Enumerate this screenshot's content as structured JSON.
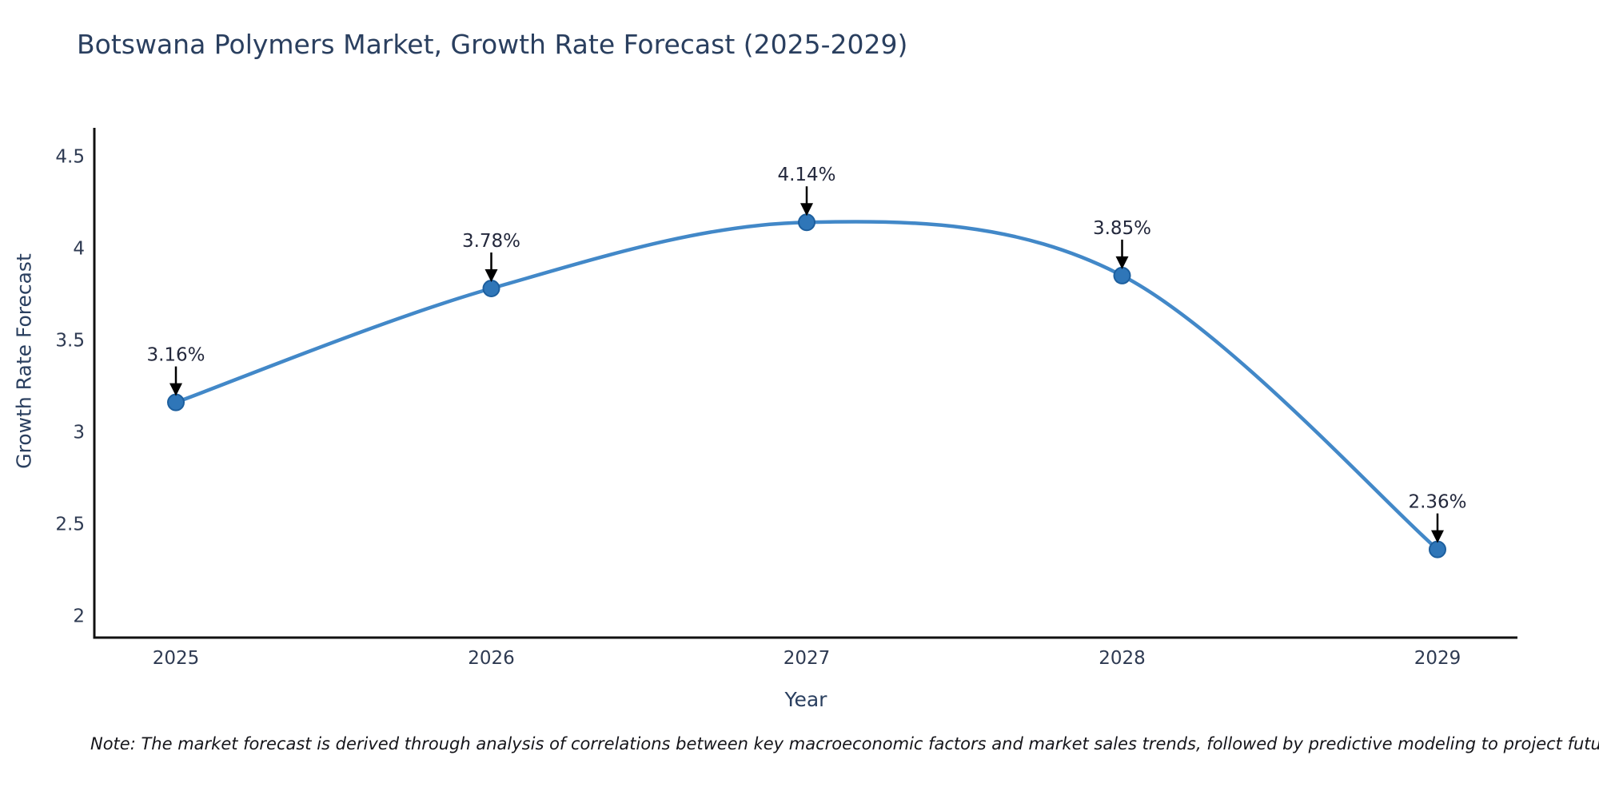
{
  "chart_data": {
    "type": "line",
    "title": "Botswana Polymers Market, Growth Rate Forecast (2025-2029)",
    "xlabel": "Year",
    "ylabel": "Growth Rate Forecast",
    "x": [
      "2025",
      "2026",
      "2027",
      "2028",
      "2029"
    ],
    "series": [
      {
        "name": "Growth Rate Forecast",
        "values": [
          3.16,
          3.78,
          4.14,
          3.85,
          2.36
        ],
        "point_labels": [
          "3.16%",
          "3.78%",
          "4.14%",
          "3.85%",
          "2.36%"
        ]
      }
    ],
    "yticks": [
      4.5,
      4,
      3.5,
      3,
      2.5,
      2
    ],
    "ylim": [
      1.88,
      4.654
    ],
    "grid": false,
    "legend": false,
    "annotation_style": "down-arrow",
    "colors": {
      "line": "#4288c8",
      "marker_fill": "#2f76b8",
      "marker_edge": "#1d5f9e",
      "axis_spine": "#111111",
      "arrow": "#000000",
      "title_text": "#2a3f5f",
      "tick_text": "#2e3a52",
      "annotation_text": "#23283c",
      "note_text": "#15151a"
    },
    "note": "Note: The market forecast is derived through analysis of correlations between key macroeconomic factors and market sales trends, followed by predictive modeling to project future sales"
  }
}
